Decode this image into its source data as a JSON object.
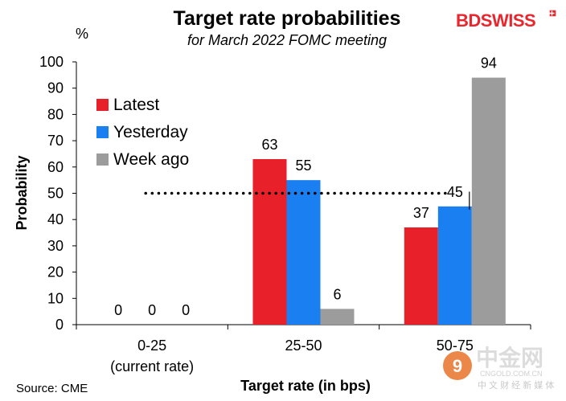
{
  "brand": {
    "logo_text": "BDSWISS",
    "color": "#e8262d",
    "watermark": {
      "cn": "中金网",
      "url": "CNGOLD.COM.CN",
      "tagline": "中 文 财 经 新 媒 体"
    }
  },
  "chart_data": {
    "type": "bar",
    "title": "Target rate probabilities",
    "subtitle": "for March 2022 FOMC meeting",
    "unit_label": "%",
    "ylabel": "Probability",
    "xlabel": "Target rate (in bps)",
    "source": "Source: CME",
    "ylim": [
      0,
      100
    ],
    "yticks": [
      0,
      10,
      20,
      30,
      40,
      50,
      60,
      70,
      80,
      90,
      100
    ],
    "categories": [
      {
        "line1": "0-25",
        "line2": "(current rate)"
      },
      {
        "line1": "25-50",
        "line2": ""
      },
      {
        "line1": "50-75",
        "line2": ""
      }
    ],
    "series": [
      {
        "name": "Latest",
        "color": "#e8202a",
        "values": [
          0,
          63,
          37
        ]
      },
      {
        "name": "Yesterday",
        "color": "#1a7ff0",
        "values": [
          0,
          55,
          45
        ]
      },
      {
        "name": "Week ago",
        "color": "#9c9c9c",
        "values": [
          0,
          6,
          94
        ]
      }
    ],
    "reference_line": {
      "value": 50,
      "style": "dotted"
    },
    "legend_position": "upper-left"
  }
}
